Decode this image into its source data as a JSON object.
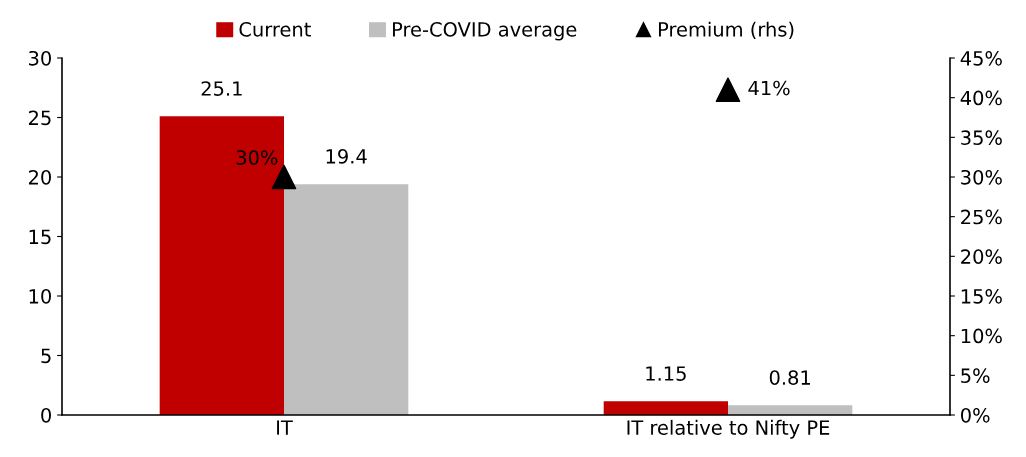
{
  "chart_data": {
    "type": "bar",
    "categories": [
      "IT",
      "IT relative to Nifty PE"
    ],
    "series": [
      {
        "name": "Current",
        "color": "#c00000",
        "values": [
          25.1,
          1.15
        ],
        "value_labels": [
          "25.1",
          "1.15"
        ]
      },
      {
        "name": "Pre-COVID average",
        "color": "#bfbfbf",
        "values": [
          19.4,
          0.81
        ],
        "value_labels": [
          "19.4",
          "0.81"
        ]
      },
      {
        "name": "Premium (rhs)",
        "type": "scatter",
        "axis": "y2",
        "color": "#000000",
        "marker": "triangle",
        "values": [
          30,
          41
        ],
        "value_labels": [
          "30%",
          "41%"
        ]
      }
    ],
    "ylim": [
      0,
      30
    ],
    "yticks": [
      0,
      5,
      10,
      15,
      20,
      25,
      30
    ],
    "y2lim": [
      0,
      45
    ],
    "y2ticks": [
      {
        "value": 0,
        "label": "0%"
      },
      {
        "value": 5,
        "label": "5%"
      },
      {
        "value": 10,
        "label": "10%"
      },
      {
        "value": 15,
        "label": "15%"
      },
      {
        "value": 20,
        "label": "20%"
      },
      {
        "value": 25,
        "label": "25%"
      },
      {
        "value": 30,
        "label": "30%"
      },
      {
        "value": 35,
        "label": "35%"
      },
      {
        "value": 40,
        "label": "40%"
      },
      {
        "value": 45,
        "label": "45%"
      }
    ],
    "legend": "top",
    "grid": false
  }
}
